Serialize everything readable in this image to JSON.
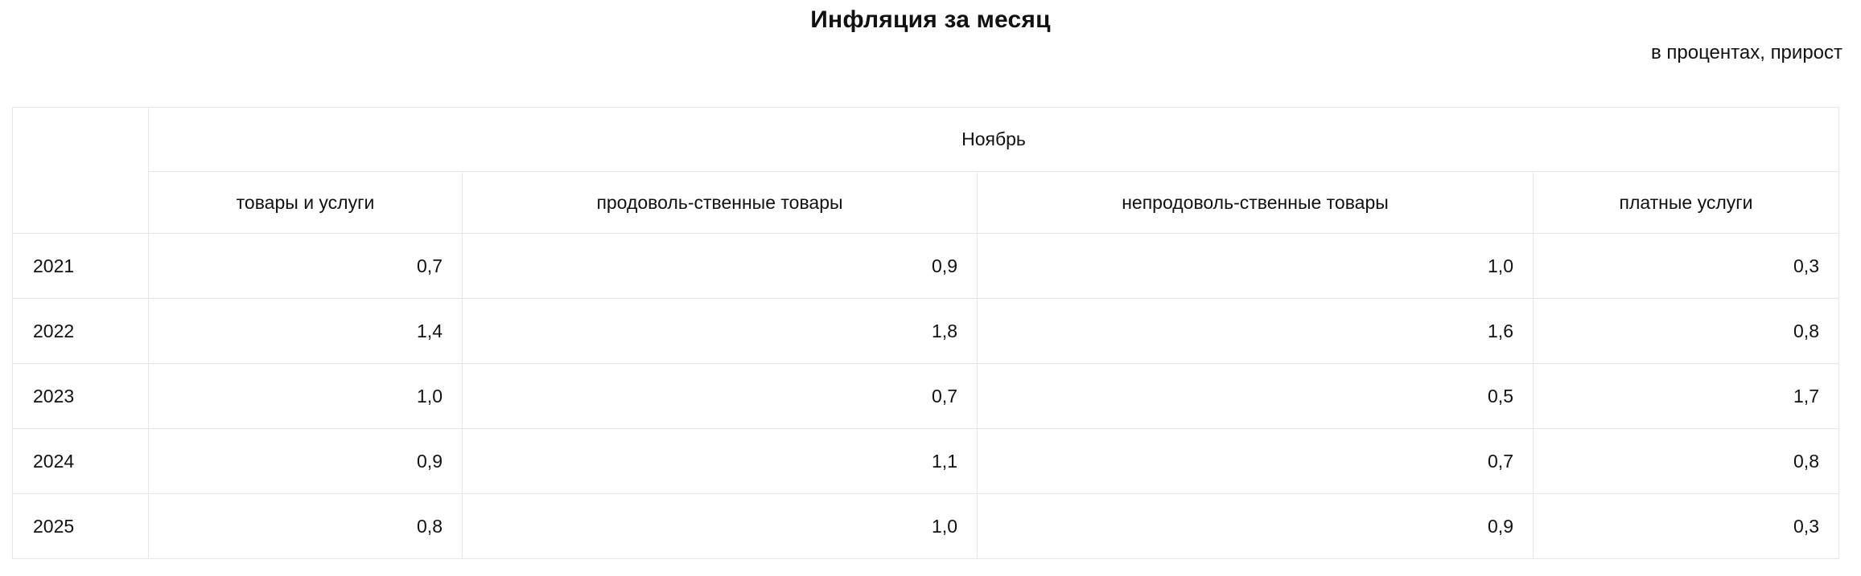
{
  "page": {
    "title": "Инфляция за месяц",
    "subtitle": "в процентах, прирост"
  },
  "table": {
    "month_header": "Ноябрь",
    "columns": [
      "товары и услуги",
      "продоволь-ственные товары",
      "непродоволь-ственные товары",
      "платные услуги"
    ],
    "rows": [
      {
        "year": "2021",
        "values": [
          "0,7",
          "0,9",
          "1,0",
          "0,3"
        ]
      },
      {
        "year": "2022",
        "values": [
          "1,4",
          "1,8",
          "1,6",
          "0,8"
        ]
      },
      {
        "year": "2023",
        "values": [
          "1,0",
          "0,7",
          "0,5",
          "1,7"
        ]
      },
      {
        "year": "2024",
        "values": [
          "0,9",
          "1,1",
          "0,7",
          "0,8"
        ]
      },
      {
        "year": "2025",
        "values": [
          "0,8",
          "1,0",
          "0,9",
          "0,3"
        ]
      }
    ]
  },
  "style": {
    "border_color": "#e6e6e6",
    "text_color": "#111111",
    "background_color": "#ffffff"
  },
  "chart_data": {
    "type": "table",
    "title": "Инфляция за месяц",
    "units_note": "в процентах, прирост",
    "period": "Ноябрь",
    "columns": [
      "товары и услуги",
      "продоволь-ственные товары",
      "непродоволь-ственные товары",
      "платные услуги"
    ],
    "years": [
      2021,
      2022,
      2023,
      2024,
      2025
    ],
    "values": [
      [
        0.7,
        0.9,
        1.0,
        0.3
      ],
      [
        1.4,
        1.8,
        1.6,
        0.8
      ],
      [
        1.0,
        0.7,
        0.5,
        1.7
      ],
      [
        0.9,
        1.1,
        0.7,
        0.8
      ],
      [
        0.8,
        1.0,
        0.9,
        0.3
      ]
    ]
  }
}
